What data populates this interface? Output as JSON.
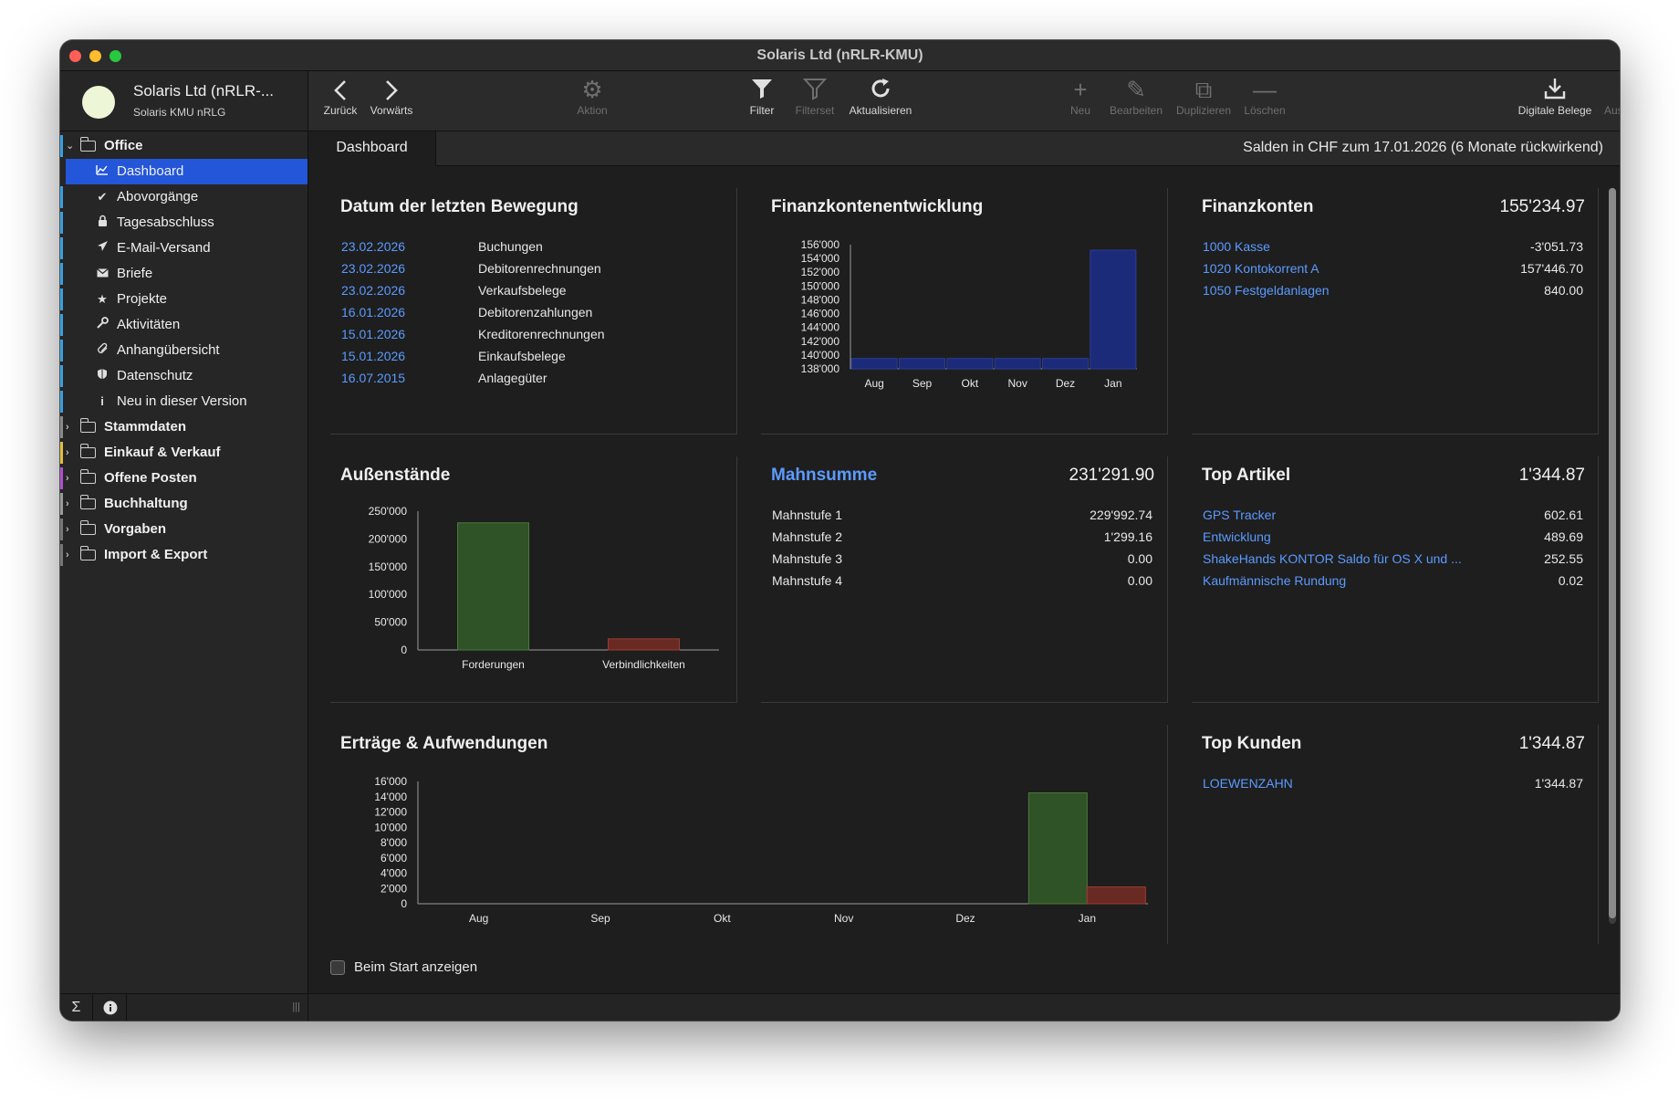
{
  "window": {
    "title": "Solaris Ltd  (nRLR-KMU)"
  },
  "account": {
    "name": "Solaris Ltd  (nRLR-...",
    "subtitle": "Solaris KMU nRLG"
  },
  "sidebar": {
    "groups": [
      {
        "label": "Office",
        "expanded": true
      },
      {
        "label": "Stammdaten",
        "color": "#8a8a8a"
      },
      {
        "label": "Einkauf & Verkauf",
        "color": "#e0c040"
      },
      {
        "label": "Offene Posten",
        "color": "#b050d0"
      },
      {
        "label": "Buchhaltung",
        "color": "#9a9a9a"
      },
      {
        "label": "Vorgaben",
        "color": "#777777"
      },
      {
        "label": "Import & Export",
        "color": "#777777"
      }
    ],
    "office_items": [
      {
        "label": "Dashboard",
        "icon": "chart-icon",
        "selected": true
      },
      {
        "label": "Abovorgänge",
        "icon": "checkmark-icon"
      },
      {
        "label": "Tagesabschluss",
        "icon": "lock-icon"
      },
      {
        "label": "E-Mail-Versand",
        "icon": "paper-plane-icon"
      },
      {
        "label": "Briefe",
        "icon": "envelope-icon"
      },
      {
        "label": "Projekte",
        "icon": "star-icon"
      },
      {
        "label": "Aktivitäten",
        "icon": "wrench-icon"
      },
      {
        "label": "Anhangübersicht",
        "icon": "paperclip-icon"
      },
      {
        "label": "Datenschutz",
        "icon": "shield-icon"
      },
      {
        "label": "Neu in dieser Version",
        "icon": "info-icon"
      }
    ],
    "footer": {
      "sum_icon": "sigma-icon",
      "info_icon": "info-icon"
    }
  },
  "toolbar": {
    "back": "Zurück",
    "forward": "Vorwärts",
    "action": "Aktion",
    "filter": "Filter",
    "filterset": "Filterset",
    "refresh": "Aktualisieren",
    "new": "Neu",
    "edit": "Bearbeiten",
    "duplicate": "Duplizieren",
    "delete": "Löschen",
    "digital_receipts": "Digitale Belege",
    "output": "Ausgeben"
  },
  "tabbar": {
    "active_tab": "Dashboard",
    "info": "Salden in CHF zum 17.01.2026 (6 Monate rückwirkend)"
  },
  "last_movement": {
    "title": "Datum der letzten Bewegung",
    "rows": [
      {
        "date": "23.02.2026",
        "label": "Buchungen"
      },
      {
        "date": "23.02.2026",
        "label": "Debitorenrechnungen"
      },
      {
        "date": "23.02.2026",
        "label": "Verkaufsbelege"
      },
      {
        "date": "16.01.2026",
        "label": "Debitorenzahlungen"
      },
      {
        "date": "15.01.2026",
        "label": "Kreditorenrechnungen"
      },
      {
        "date": "15.01.2026",
        "label": "Einkaufsbelege"
      },
      {
        "date": "16.07.2015",
        "label": "Anlagegüter"
      }
    ]
  },
  "finance_accounts": {
    "title": "Finanzkonten",
    "total": "155'234.97",
    "rows": [
      {
        "label": "1000 Kasse",
        "value": "-3'051.73"
      },
      {
        "label": "1020 Kontokorrent A",
        "value": "157'446.70"
      },
      {
        "label": "1050 Festgeldanlagen",
        "value": "840.00"
      }
    ]
  },
  "dunning": {
    "title": "Mahnsumme",
    "total": "231'291.90",
    "rows": [
      {
        "label": "Mahnstufe 1",
        "value": "229'992.74"
      },
      {
        "label": "Mahnstufe 2",
        "value": "1'299.16"
      },
      {
        "label": "Mahnstufe 3",
        "value": "0.00"
      },
      {
        "label": "Mahnstufe 4",
        "value": "0.00"
      }
    ]
  },
  "top_articles": {
    "title": "Top Artikel",
    "total": "1'344.87",
    "rows": [
      {
        "label": "GPS Tracker",
        "value": "602.61"
      },
      {
        "label": "Entwicklung",
        "value": "489.69"
      },
      {
        "label": "ShakeHands KONTOR Saldo für OS X und ...",
        "value": "252.55"
      },
      {
        "label": "Kaufmännische Rundung",
        "value": "0.02"
      }
    ]
  },
  "top_customers": {
    "title": "Top Kunden",
    "total": "1'344.87",
    "rows": [
      {
        "label": "LOEWENZAHN",
        "value": "1'344.87"
      }
    ]
  },
  "footer": {
    "show_on_start": "Beim Start anzeigen"
  },
  "colors": {
    "accent": "#2356d9",
    "link": "#5b9bff",
    "bar_blue": "#1c2a7a",
    "bar_green": "#2f5226",
    "bar_red": "#6a2a24"
  },
  "chart_data": [
    {
      "type": "bar",
      "title": "Finanzkontenentwicklung",
      "categories": [
        "Aug",
        "Sep",
        "Okt",
        "Nov",
        "Dez",
        "Jan"
      ],
      "values": [
        139500,
        139500,
        139500,
        139500,
        139500,
        155200
      ],
      "yticks": [
        "138'000",
        "140'000",
        "142'000",
        "144'000",
        "146'000",
        "148'000",
        "150'000",
        "152'000",
        "154'000",
        "156'000"
      ],
      "ylim": [
        138000,
        156000
      ]
    },
    {
      "type": "bar",
      "title": "Außenstände",
      "categories": [
        "Forderungen",
        "Verbindlichkeiten"
      ],
      "values": [
        229000,
        20000
      ],
      "yticks": [
        "0",
        "50'000",
        "100'000",
        "150'000",
        "200'000",
        "250'000"
      ],
      "ylim": [
        0,
        250000
      ]
    },
    {
      "type": "bar",
      "title": "Erträge & Aufwendungen",
      "categories": [
        "Aug",
        "Sep",
        "Okt",
        "Nov",
        "Dez",
        "Jan"
      ],
      "series": [
        {
          "values": [
            0,
            0,
            0,
            0,
            0,
            14500
          ]
        },
        {
          "values": [
            0,
            0,
            0,
            0,
            0,
            2200
          ]
        }
      ],
      "yticks": [
        "0",
        "2'000",
        "4'000",
        "6'000",
        "8'000",
        "10'000",
        "12'000",
        "14'000",
        "16'000"
      ],
      "ylim": [
        0,
        16000
      ]
    }
  ]
}
